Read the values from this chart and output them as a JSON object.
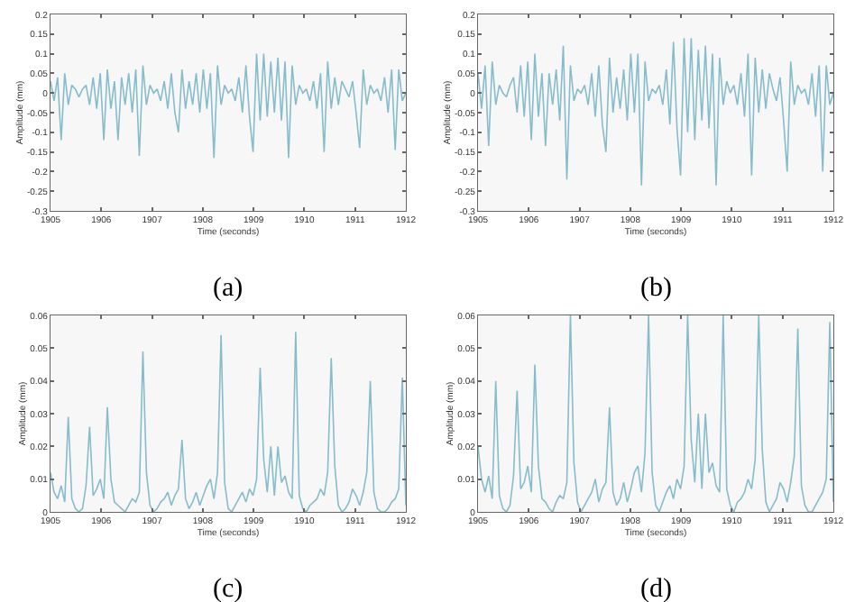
{
  "chart_data": [
    {
      "type": "line",
      "xlabel": "Time (seconds)",
      "ylabel": "Amplitude (mm)",
      "annotations": [
        "(a)"
      ],
      "color": "#86bccb",
      "xlim": [
        1905,
        1912
      ],
      "xticks": [
        1905,
        1906,
        1907,
        1908,
        1909,
        1910,
        1911,
        1912
      ],
      "ylim": [
        -0.3,
        0.2
      ],
      "yticks": [
        -0.3,
        -0.25,
        -0.2,
        -0.15,
        -0.1,
        -0.05,
        0,
        0.05,
        0.1,
        0.15,
        0.2
      ],
      "x": [
        1905,
        1905.07,
        1905.14,
        1905.21,
        1905.28,
        1905.35,
        1905.42,
        1905.49,
        1905.56,
        1905.63,
        1905.7,
        1905.77,
        1905.84,
        1905.91,
        1905.98,
        1906.05,
        1906.12,
        1906.19,
        1906.26,
        1906.33,
        1906.4,
        1906.47,
        1906.54,
        1906.61,
        1906.68,
        1906.75,
        1906.82,
        1906.89,
        1906.96,
        1907.03,
        1907.1,
        1907.17,
        1907.24,
        1907.31,
        1907.38,
        1907.45,
        1907.52,
        1907.59,
        1907.66,
        1907.73,
        1907.8,
        1907.87,
        1907.94,
        1908.01,
        1908.08,
        1908.15,
        1908.22,
        1908.29,
        1908.36,
        1908.43,
        1908.5,
        1908.57,
        1908.64,
        1908.71,
        1908.78,
        1908.85,
        1908.92,
        1908.99,
        1909.06,
        1909.13,
        1909.2,
        1909.27,
        1909.34,
        1909.41,
        1909.48,
        1909.55,
        1909.62,
        1909.69,
        1909.76,
        1909.83,
        1909.9,
        1909.97,
        1910.04,
        1910.11,
        1910.18,
        1910.25,
        1910.32,
        1910.39,
        1910.46,
        1910.53,
        1910.6,
        1910.67,
        1910.74,
        1910.81,
        1910.88,
        1910.95,
        1911.02,
        1911.09,
        1911.16,
        1911.23,
        1911.3,
        1911.37,
        1911.44,
        1911.51,
        1911.58,
        1911.65,
        1911.72,
        1911.79,
        1911.86,
        1911.93,
        1912
      ],
      "values": [
        0.03,
        -0.02,
        0.04,
        -0.12,
        0.05,
        -0.03,
        0.02,
        0.01,
        -0.01,
        0.01,
        0.02,
        -0.03,
        0.04,
        -0.04,
        0.05,
        -0.12,
        0.06,
        -0.04,
        0.03,
        -0.12,
        0.04,
        -0.03,
        0.05,
        -0.05,
        0.06,
        -0.16,
        0.07,
        -0.03,
        0.02,
        0.0,
        0.01,
        -0.02,
        0.03,
        -0.04,
        0.05,
        -0.05,
        -0.1,
        0.06,
        -0.04,
        0.03,
        -0.03,
        0.05,
        -0.05,
        0.06,
        -0.04,
        0.05,
        -0.165,
        0.07,
        -0.03,
        0.02,
        0.0,
        0.01,
        -0.02,
        0.04,
        -0.05,
        0.07,
        -0.06,
        -0.15,
        0.1,
        -0.07,
        0.1,
        -0.06,
        0.08,
        -0.05,
        0.09,
        -0.07,
        0.08,
        -0.165,
        0.07,
        -0.03,
        0.02,
        0.0,
        0.01,
        -0.02,
        0.03,
        -0.04,
        0.05,
        -0.15,
        0.08,
        -0.04,
        0.04,
        -0.03,
        0.03,
        0.01,
        -0.01,
        0.03,
        -0.05,
        -0.14,
        0.06,
        -0.03,
        0.02,
        0.0,
        0.01,
        -0.02,
        0.04,
        -0.05,
        0.06,
        -0.145,
        0.06,
        -0.02,
        0.0
      ]
    },
    {
      "type": "line",
      "xlabel": "Time (seconds)",
      "ylabel": "Amplitude (mm)",
      "annotations": [
        "(b)"
      ],
      "color": "#86bccb",
      "xlim": [
        1905,
        1912
      ],
      "xticks": [
        1905,
        1906,
        1907,
        1908,
        1909,
        1910,
        1911,
        1912
      ],
      "ylim": [
        -0.3,
        0.2
      ],
      "yticks": [
        -0.3,
        -0.25,
        -0.2,
        -0.15,
        -0.1,
        -0.05,
        0,
        0.05,
        0.1,
        0.15,
        0.2
      ],
      "x": [
        1905,
        1905.07,
        1905.14,
        1905.21,
        1905.28,
        1905.35,
        1905.42,
        1905.49,
        1905.56,
        1905.63,
        1905.7,
        1905.77,
        1905.84,
        1905.91,
        1905.98,
        1906.05,
        1906.12,
        1906.19,
        1906.26,
        1906.33,
        1906.4,
        1906.47,
        1906.54,
        1906.61,
        1906.68,
        1906.75,
        1906.82,
        1906.89,
        1906.96,
        1907.03,
        1907.1,
        1907.17,
        1907.24,
        1907.31,
        1907.38,
        1907.45,
        1907.52,
        1907.59,
        1907.66,
        1907.73,
        1907.8,
        1907.87,
        1907.94,
        1908.01,
        1908.08,
        1908.15,
        1908.22,
        1908.29,
        1908.36,
        1908.43,
        1908.5,
        1908.57,
        1908.64,
        1908.71,
        1908.78,
        1908.85,
        1908.92,
        1908.99,
        1909.06,
        1909.13,
        1909.2,
        1909.27,
        1909.34,
        1909.41,
        1909.48,
        1909.55,
        1909.62,
        1909.69,
        1909.76,
        1909.83,
        1909.9,
        1909.97,
        1910.04,
        1910.11,
        1910.18,
        1910.25,
        1910.32,
        1910.39,
        1910.46,
        1910.53,
        1910.6,
        1910.67,
        1910.74,
        1910.81,
        1910.88,
        1910.95,
        1911.02,
        1911.09,
        1911.16,
        1911.23,
        1911.3,
        1911.37,
        1911.44,
        1911.51,
        1911.58,
        1911.65,
        1911.72,
        1911.79,
        1911.86,
        1911.93,
        1912
      ],
      "values": [
        0.05,
        -0.04,
        0.07,
        -0.135,
        0.08,
        -0.03,
        0.02,
        0.0,
        -0.01,
        0.02,
        0.04,
        -0.05,
        0.07,
        -0.06,
        0.08,
        -0.12,
        0.1,
        -0.06,
        0.05,
        -0.135,
        0.05,
        -0.03,
        0.06,
        -0.07,
        0.12,
        -0.22,
        0.07,
        -0.02,
        0.01,
        0.0,
        0.02,
        -0.03,
        0.05,
        -0.06,
        0.07,
        -0.08,
        -0.15,
        0.09,
        -0.05,
        0.04,
        -0.04,
        0.06,
        -0.07,
        0.1,
        -0.05,
        0.1,
        -0.235,
        0.08,
        -0.02,
        0.01,
        0.0,
        0.02,
        -0.03,
        0.06,
        -0.08,
        0.13,
        -0.09,
        -0.21,
        0.14,
        -0.1,
        0.14,
        -0.12,
        0.11,
        -0.07,
        0.12,
        -0.09,
        0.1,
        -0.235,
        0.09,
        -0.03,
        0.03,
        0.0,
        0.02,
        -0.03,
        0.05,
        -0.06,
        0.1,
        -0.21,
        0.09,
        -0.05,
        0.06,
        -0.04,
        0.05,
        0.01,
        -0.02,
        0.04,
        -0.07,
        -0.2,
        0.08,
        -0.03,
        0.02,
        0.0,
        0.01,
        -0.03,
        0.05,
        -0.06,
        0.07,
        -0.2,
        0.07,
        -0.03,
        0.0
      ]
    },
    {
      "type": "line",
      "xlabel": "Time (seconds)",
      "ylabel": "Amplitude (mm)",
      "annotations": [
        "(c)"
      ],
      "color": "#86bccb",
      "xlim": [
        1905,
        1912
      ],
      "xticks": [
        1905,
        1906,
        1907,
        1908,
        1909,
        1910,
        1911,
        1912
      ],
      "ylim": [
        0,
        0.06
      ],
      "yticks": [
        0,
        0.01,
        0.02,
        0.03,
        0.04,
        0.05,
        0.06
      ],
      "x": [
        1905,
        1905.07,
        1905.14,
        1905.21,
        1905.28,
        1905.35,
        1905.42,
        1905.49,
        1905.56,
        1905.63,
        1905.7,
        1905.77,
        1905.84,
        1905.91,
        1905.98,
        1906.05,
        1906.12,
        1906.19,
        1906.26,
        1906.33,
        1906.4,
        1906.47,
        1906.54,
        1906.61,
        1906.68,
        1906.75,
        1906.82,
        1906.89,
        1906.96,
        1907.03,
        1907.1,
        1907.17,
        1907.24,
        1907.31,
        1907.38,
        1907.45,
        1907.52,
        1907.59,
        1907.66,
        1907.73,
        1907.8,
        1907.87,
        1907.94,
        1908.01,
        1908.08,
        1908.15,
        1908.22,
        1908.29,
        1908.36,
        1908.43,
        1908.5,
        1908.57,
        1908.64,
        1908.71,
        1908.78,
        1908.85,
        1908.92,
        1908.99,
        1909.06,
        1909.13,
        1909.2,
        1909.27,
        1909.34,
        1909.41,
        1909.48,
        1909.55,
        1909.62,
        1909.69,
        1909.76,
        1909.83,
        1909.9,
        1909.97,
        1910.04,
        1910.11,
        1910.18,
        1910.25,
        1910.32,
        1910.39,
        1910.46,
        1910.53,
        1910.6,
        1910.67,
        1910.74,
        1910.81,
        1910.88,
        1910.95,
        1911.02,
        1911.09,
        1911.16,
        1911.23,
        1911.3,
        1911.37,
        1911.44,
        1911.51,
        1911.58,
        1911.65,
        1911.72,
        1911.79,
        1911.86,
        1911.93,
        1912
      ],
      "values": [
        0.012,
        0.006,
        0.004,
        0.008,
        0.003,
        0.029,
        0.004,
        0.001,
        0.0,
        0.001,
        0.008,
        0.026,
        0.005,
        0.007,
        0.01,
        0.004,
        0.032,
        0.01,
        0.003,
        0.002,
        0.001,
        0.0,
        0.002,
        0.004,
        0.003,
        0.006,
        0.049,
        0.012,
        0.002,
        0.0,
        0.001,
        0.003,
        0.004,
        0.006,
        0.002,
        0.005,
        0.007,
        0.022,
        0.004,
        0.001,
        0.003,
        0.006,
        0.002,
        0.005,
        0.008,
        0.01,
        0.004,
        0.012,
        0.054,
        0.009,
        0.001,
        0.0,
        0.002,
        0.004,
        0.006,
        0.003,
        0.007,
        0.005,
        0.01,
        0.044,
        0.016,
        0.006,
        0.02,
        0.005,
        0.02,
        0.009,
        0.011,
        0.006,
        0.004,
        0.055,
        0.005,
        0.001,
        0.0,
        0.002,
        0.003,
        0.004,
        0.007,
        0.005,
        0.012,
        0.047,
        0.014,
        0.002,
        0.0,
        0.001,
        0.003,
        0.007,
        0.005,
        0.002,
        0.006,
        0.012,
        0.04,
        0.006,
        0.001,
        0.0,
        0.0,
        0.001,
        0.003,
        0.004,
        0.007,
        0.041,
        0.002
      ]
    },
    {
      "type": "line",
      "xlabel": "Time (seconds)",
      "ylabel": "Amplitude (mm)",
      "annotations": [
        "(d)"
      ],
      "color": "#86bccb",
      "xlim": [
        1905,
        1912
      ],
      "xticks": [
        1905,
        1906,
        1907,
        1908,
        1909,
        1910,
        1911,
        1912
      ],
      "ylim": [
        0,
        0.06
      ],
      "yticks": [
        0,
        0.01,
        0.02,
        0.03,
        0.04,
        0.05,
        0.06
      ],
      "x": [
        1905,
        1905.07,
        1905.14,
        1905.21,
        1905.28,
        1905.35,
        1905.42,
        1905.49,
        1905.56,
        1905.63,
        1905.7,
        1905.77,
        1905.84,
        1905.91,
        1905.98,
        1906.05,
        1906.12,
        1906.19,
        1906.26,
        1906.33,
        1906.4,
        1906.47,
        1906.54,
        1906.61,
        1906.68,
        1906.75,
        1906.82,
        1906.89,
        1906.96,
        1907.03,
        1907.1,
        1907.17,
        1907.24,
        1907.31,
        1907.38,
        1907.45,
        1907.52,
        1907.59,
        1907.66,
        1907.73,
        1907.8,
        1907.87,
        1907.94,
        1908.01,
        1908.08,
        1908.15,
        1908.22,
        1908.29,
        1908.36,
        1908.43,
        1908.5,
        1908.57,
        1908.64,
        1908.71,
        1908.78,
        1908.85,
        1908.92,
        1908.99,
        1909.06,
        1909.13,
        1909.2,
        1909.27,
        1909.34,
        1909.41,
        1909.48,
        1909.55,
        1909.62,
        1909.69,
        1909.76,
        1909.83,
        1909.9,
        1909.97,
        1910.04,
        1910.11,
        1910.18,
        1910.25,
        1910.32,
        1910.39,
        1910.46,
        1910.53,
        1910.6,
        1910.67,
        1910.74,
        1910.81,
        1910.88,
        1910.95,
        1911.02,
        1911.09,
        1911.16,
        1911.23,
        1911.3,
        1911.37,
        1911.44,
        1911.51,
        1911.58,
        1911.65,
        1911.72,
        1911.79,
        1911.86,
        1911.93,
        1912
      ],
      "values": [
        0.02,
        0.01,
        0.006,
        0.011,
        0.004,
        0.04,
        0.005,
        0.001,
        0.0,
        0.002,
        0.011,
        0.037,
        0.007,
        0.009,
        0.014,
        0.006,
        0.045,
        0.014,
        0.004,
        0.003,
        0.001,
        0.0,
        0.003,
        0.005,
        0.004,
        0.009,
        0.06,
        0.015,
        0.003,
        0.0,
        0.002,
        0.004,
        0.006,
        0.01,
        0.003,
        0.007,
        0.009,
        0.032,
        0.006,
        0.002,
        0.004,
        0.009,
        0.003,
        0.007,
        0.012,
        0.014,
        0.006,
        0.018,
        0.06,
        0.012,
        0.002,
        0.0,
        0.003,
        0.006,
        0.008,
        0.004,
        0.01,
        0.007,
        0.014,
        0.06,
        0.022,
        0.009,
        0.03,
        0.007,
        0.03,
        0.012,
        0.015,
        0.008,
        0.006,
        0.06,
        0.007,
        0.002,
        0.0,
        0.003,
        0.004,
        0.006,
        0.01,
        0.007,
        0.016,
        0.06,
        0.019,
        0.003,
        0.0,
        0.002,
        0.004,
        0.009,
        0.007,
        0.003,
        0.009,
        0.017,
        0.056,
        0.008,
        0.002,
        0.0,
        0.0,
        0.002,
        0.004,
        0.006,
        0.01,
        0.058,
        0.003
      ]
    }
  ]
}
